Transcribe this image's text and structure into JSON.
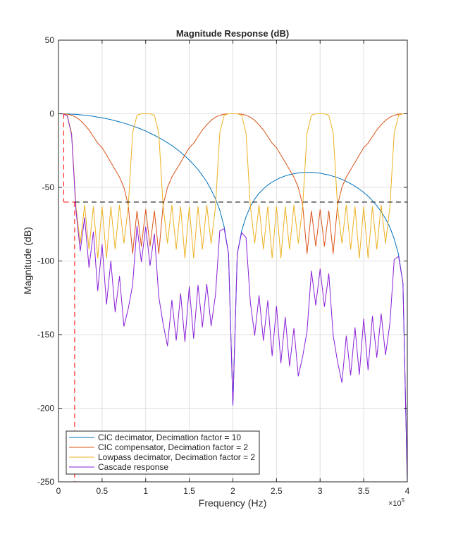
{
  "chart_data": {
    "type": "line",
    "title": "Magnitude Response (dB)",
    "xlabel": "Frequency (Hz)",
    "ylabel": "Magnitude (dB)",
    "x_exponent_label": "×10",
    "x_exponent_power": "5",
    "xlim": [
      0,
      400000
    ],
    "ylim": [
      -250,
      50
    ],
    "grid": true,
    "legend_position": "bottom-left",
    "x_ticks": [
      0,
      50000,
      100000,
      150000,
      200000,
      250000,
      300000,
      350000,
      400000
    ],
    "x_tick_labels": [
      "0",
      "0.5",
      "1",
      "1.5",
      "2",
      "2.5",
      "3",
      "3.5",
      "4"
    ],
    "y_ticks": [
      50,
      0,
      -50,
      -100,
      -150,
      -200,
      -250
    ],
    "y_tick_labels": [
      "50",
      "0",
      "-50",
      "-100",
      "-150",
      "-200",
      "-250"
    ],
    "x": [
      0,
      5000,
      10000,
      15000,
      20000,
      25000,
      30000,
      35000,
      40000,
      45000,
      50000,
      55000,
      60000,
      65000,
      70000,
      75000,
      80000,
      85000,
      90000,
      95000,
      100000,
      105000,
      110000,
      115000,
      120000,
      125000,
      130000,
      135000,
      140000,
      145000,
      150000,
      155000,
      160000,
      165000,
      170000,
      175000,
      180000,
      185000,
      190000,
      195000,
      200000,
      205000,
      210000,
      215000,
      220000,
      225000,
      230000,
      235000,
      240000,
      245000,
      250000,
      255000,
      260000,
      265000,
      270000,
      275000,
      280000,
      285000,
      290000,
      295000,
      300000,
      305000,
      310000,
      315000,
      320000,
      325000,
      330000,
      335000,
      340000,
      345000,
      350000,
      355000,
      360000,
      365000,
      370000,
      375000,
      380000,
      385000,
      390000,
      395000,
      400000
    ],
    "series": [
      {
        "name": "CIC decimator, Decimation factor = 10",
        "color": "#0072BD",
        "values": [
          0,
          -0.03,
          -0.11,
          -0.27,
          -0.43,
          -0.7,
          -0.97,
          -1.35,
          -1.74,
          -2.24,
          -2.74,
          -3.36,
          -3.98,
          -4.73,
          -5.49,
          -6.37,
          -7.26,
          -8.3,
          -9.34,
          -10.55,
          -11.77,
          -13.17,
          -14.57,
          -16.2,
          -17.83,
          -19.7,
          -21.6,
          -23.8,
          -26.06,
          -28.7,
          -31.4,
          -34.6,
          -37.9,
          -41.9,
          -46.2,
          -51.6,
          -57.7,
          -65.5,
          -76.8,
          -95,
          -198,
          -95,
          -79.5,
          -70,
          -62.9,
          -58,
          -54,
          -51,
          -48.4,
          -46.4,
          -44.7,
          -43.3,
          -42.2,
          -41.4,
          -40.7,
          -40.2,
          -39.9,
          -39.8,
          -39.8,
          -40.1,
          -40.4,
          -41,
          -41.6,
          -42.5,
          -43.4,
          -44.6,
          -45.9,
          -47.5,
          -49.2,
          -51.2,
          -53.4,
          -56,
          -59,
          -62.5,
          -66.4,
          -71.3,
          -77.1,
          -85,
          -95.6,
          -115,
          -250
        ]
      },
      {
        "name": "CIC compensator, Decimation factor = 2",
        "color": "#D95319",
        "values": [
          0,
          0,
          -0.3,
          -1,
          -2.3,
          -4.5,
          -7.5,
          -11,
          -15.5,
          -20,
          -23,
          -28,
          -33,
          -38,
          -43,
          -50,
          -62,
          -95,
          -66,
          -90,
          -65,
          -90,
          -66,
          -95,
          -62,
          -50,
          -43,
          -38,
          -33,
          -28,
          -23,
          -20,
          -15.5,
          -11,
          -7.5,
          -4.5,
          -2.3,
          -1,
          -0.3,
          0,
          0,
          0,
          -0.3,
          -1,
          -2.3,
          -4.5,
          -7.5,
          -11,
          -15.5,
          -20,
          -23,
          -28,
          -33,
          -38,
          -43,
          -50,
          -62,
          -95,
          -66,
          -90,
          -65,
          -90,
          -66,
          -95,
          -62,
          -50,
          -43,
          -38,
          -33,
          -28,
          -23,
          -20,
          -15.5,
          -11,
          -7.5,
          -4.5,
          -2.3,
          -1,
          -0.3,
          0,
          0
        ]
      },
      {
        "name": "Lowpass decimator, Decimation factor = 2",
        "color": "#EDB120",
        "values": [
          0,
          0,
          -1,
          -13,
          -63,
          -88,
          -62,
          -92,
          -63,
          -98,
          -63,
          -98,
          -63,
          -92,
          -62,
          -88,
          -63,
          -13,
          -1,
          0,
          0,
          0,
          -1,
          -13,
          -63,
          -88,
          -62,
          -92,
          -63,
          -98,
          -63,
          -98,
          -63,
          -92,
          -62,
          -88,
          -63,
          -13,
          -1,
          0,
          0,
          0,
          -1,
          -13,
          -63,
          -88,
          -62,
          -92,
          -63,
          -98,
          -63,
          -98,
          -63,
          -92,
          -62,
          -88,
          -63,
          -13,
          -1,
          0,
          0,
          0,
          -1,
          -13,
          -63,
          -88,
          -62,
          -92,
          -63,
          -98,
          -63,
          -98,
          -63,
          -92,
          -62,
          -88,
          -63,
          -13,
          -1,
          0,
          0
        ]
      },
      {
        "name": "Cascade response",
        "color": "#8A1FD8",
        "values": [
          0,
          -0.03,
          -1.4,
          -14.3,
          -65.7,
          -93.2,
          -70.5,
          -104.4,
          -80.2,
          -120.2,
          -88.7,
          -129.4,
          -100,
          -134.7,
          -110.5,
          -144.4,
          -132.3,
          -116.3,
          -76.3,
          -100.6,
          -76.8,
          -103.2,
          -81.6,
          -124.2,
          -142.8,
          -157.7,
          -126.6,
          -153.8,
          -122.1,
          -154.7,
          -117.4,
          -152.6,
          -116.4,
          -144.9,
          -115.7,
          -144.1,
          -123,
          -79.5,
          -78.1,
          -95,
          -198,
          -95,
          -80.8,
          -84,
          -128.2,
          -150.5,
          -123.5,
          -154,
          -126.9,
          -164.4,
          -130.7,
          -169.3,
          -138.2,
          -171.4,
          -145.7,
          -178.2,
          -164.9,
          -147.8,
          -106.8,
          -130.1,
          -105.4,
          -131,
          -108.6,
          -150.5,
          -168.4,
          -182.6,
          -150.9,
          -177.5,
          -145.2,
          -177.2,
          -139.4,
          -174,
          -137.5,
          -165.5,
          -135.9,
          -163.8,
          -142.4,
          -99,
          -96.9,
          -115,
          -250
        ]
      }
    ],
    "spec_lines": [
      {
        "name": "passband-edge",
        "color": "#FF2A2A",
        "x": [
          6000,
          6000
        ],
        "y": [
          0,
          -60
        ]
      },
      {
        "name": "stopband-edge",
        "color": "#FF2A2A",
        "x": [
          18500,
          18500
        ],
        "y": [
          -60,
          -250
        ]
      },
      {
        "name": "stopband-attenuation-red",
        "color": "#FF2A2A",
        "x": [
          6000,
          18500
        ],
        "y": [
          -60,
          -60
        ]
      },
      {
        "name": "stopband-attenuation",
        "color": "#262626",
        "x": [
          18500,
          400000
        ],
        "y": [
          -60,
          -60
        ]
      }
    ]
  }
}
